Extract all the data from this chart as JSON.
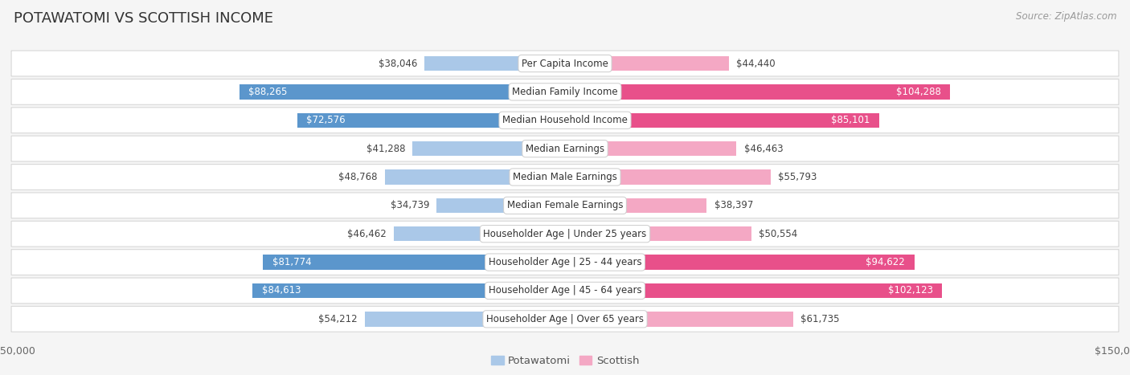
{
  "title": "POTAWATOMI VS SCOTTISH INCOME",
  "source": "Source: ZipAtlas.com",
  "categories": [
    "Per Capita Income",
    "Median Family Income",
    "Median Household Income",
    "Median Earnings",
    "Median Male Earnings",
    "Median Female Earnings",
    "Householder Age | Under 25 years",
    "Householder Age | 25 - 44 years",
    "Householder Age | 45 - 64 years",
    "Householder Age | Over 65 years"
  ],
  "potawatomi": [
    38046,
    88265,
    72576,
    41288,
    48768,
    34739,
    46462,
    81774,
    84613,
    54212
  ],
  "scottish": [
    44440,
    104288,
    85101,
    46463,
    55793,
    38397,
    50554,
    94622,
    102123,
    61735
  ],
  "potawatomi_labels": [
    "$38,046",
    "$88,265",
    "$72,576",
    "$41,288",
    "$48,768",
    "$34,739",
    "$46,462",
    "$81,774",
    "$84,613",
    "$54,212"
  ],
  "scottish_labels": [
    "$44,440",
    "$104,288",
    "$85,101",
    "$46,463",
    "$55,793",
    "$38,397",
    "$50,554",
    "$94,622",
    "$102,123",
    "$61,735"
  ],
  "potawatomi_color_light": "#aac8e8",
  "potawatomi_color_dark": "#5b96cc",
  "scottish_color_light": "#f4a8c4",
  "scottish_color_dark": "#e8508a",
  "potawatomi_dark_threshold": 60000,
  "scottish_dark_threshold": 80000,
  "bar_height": 0.52,
  "max_value": 150000,
  "bg_color": "#f5f5f5",
  "row_bg": "#ffffff",
  "row_border": "#d8d8d8",
  "label_fontsize": 8.5,
  "category_fontsize": 8.5,
  "title_fontsize": 13,
  "source_fontsize": 8.5
}
